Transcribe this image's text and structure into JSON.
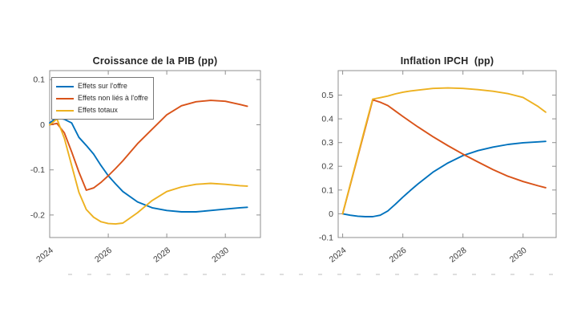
{
  "figure": {
    "background": "#ffffff",
    "axis_color": "#8f8f8f",
    "tick_label_color": "#3d3d3d",
    "title_color": "#252525"
  },
  "chart_data": [
    {
      "type": "line",
      "title": "Croissance de la PIB (pp)",
      "xlabel": "",
      "ylabel": "",
      "grid": false,
      "xlim": [
        2024,
        2031.2
      ],
      "ylim": [
        -0.25,
        0.12
      ],
      "x_tick_values": [
        2024,
        2026,
        2028,
        2030
      ],
      "x_tick_labels": [
        "2024",
        "2026",
        "2028",
        "2030"
      ],
      "y_tick_values": [
        0.1,
        0,
        -0.1,
        -0.2
      ],
      "y_tick_labels": [
        "0.1",
        "0",
        "-0.1",
        "-0.2"
      ],
      "legend": {
        "position": "top-left"
      },
      "x": [
        2024,
        2024.25,
        2024.5,
        2024.75,
        2025,
        2025.25,
        2025.5,
        2025.75,
        2026,
        2026.25,
        2026.5,
        2027,
        2027.5,
        2028,
        2028.5,
        2029,
        2029.5,
        2030,
        2030.5,
        2030.75
      ],
      "series": [
        {
          "name": "Effets sur l'offre",
          "color": "#0072BD",
          "values": [
            0.004,
            0.016,
            0.012,
            0.004,
            -0.028,
            -0.046,
            -0.065,
            -0.09,
            -0.113,
            -0.131,
            -0.148,
            -0.171,
            -0.184,
            -0.19,
            -0.193,
            -0.193,
            -0.19,
            -0.187,
            -0.184,
            -0.183
          ]
        },
        {
          "name": "Effets non liés à l'offre",
          "color": "#D95319",
          "values": [
            0.0,
            0.003,
            -0.018,
            -0.06,
            -0.105,
            -0.145,
            -0.14,
            -0.128,
            -0.113,
            -0.097,
            -0.08,
            -0.042,
            -0.01,
            0.022,
            0.042,
            0.051,
            0.054,
            0.052,
            0.045,
            0.041
          ]
        },
        {
          "name": "Effets totaux",
          "color": "#EDB120",
          "values": [
            0.0,
            0.013,
            -0.03,
            -0.09,
            -0.15,
            -0.188,
            -0.205,
            -0.215,
            -0.219,
            -0.22,
            -0.218,
            -0.195,
            -0.168,
            -0.148,
            -0.138,
            -0.132,
            -0.13,
            -0.132,
            -0.135,
            -0.136
          ]
        }
      ]
    },
    {
      "type": "line",
      "title": "Inflation IPCH  (pp)",
      "xlabel": "",
      "ylabel": "",
      "grid": false,
      "xlim": [
        2023.85,
        2031.1
      ],
      "ylim": [
        -0.1,
        0.603
      ],
      "x_tick_values": [
        2024,
        2026,
        2028,
        2030
      ],
      "x_tick_labels": [
        "2024",
        "2026",
        "2028",
        "2030"
      ],
      "y_tick_values": [
        0.5,
        0.4,
        0.3,
        0.2,
        0.1,
        0,
        -0.1
      ],
      "y_tick_labels": [
        "0.5",
        "0.4",
        "0.3",
        "0.2",
        "0.1",
        "0",
        "-0.1"
      ],
      "legend": null,
      "x": [
        2024,
        2024.25,
        2024.5,
        2024.75,
        2025,
        2025.25,
        2025.5,
        2025.75,
        2026,
        2026.25,
        2026.5,
        2027,
        2027.5,
        2028,
        2028.5,
        2029,
        2029.5,
        2030,
        2030.5,
        2030.75
      ],
      "series": [
        {
          "name": "Effets sur l'offre",
          "color": "#0072BD",
          "values": [
            0.0,
            -0.006,
            -0.01,
            -0.012,
            -0.012,
            -0.006,
            0.012,
            0.04,
            0.07,
            0.098,
            0.125,
            0.175,
            0.214,
            0.245,
            0.266,
            0.281,
            0.292,
            0.299,
            0.303,
            0.305
          ]
        },
        {
          "name": "Effets non liés à l'offre",
          "color": "#D95319",
          "values": [
            0.0,
            0.12,
            0.24,
            0.36,
            0.48,
            0.47,
            0.456,
            0.433,
            0.41,
            0.388,
            0.366,
            0.325,
            0.287,
            0.251,
            0.218,
            0.186,
            0.158,
            0.136,
            0.118,
            0.11
          ]
        },
        {
          "name": "Effets totaux",
          "color": "#EDB120",
          "values": [
            0.0,
            0.122,
            0.244,
            0.366,
            0.483,
            0.489,
            0.496,
            0.505,
            0.512,
            0.517,
            0.521,
            0.528,
            0.53,
            0.528,
            0.523,
            0.516,
            0.506,
            0.49,
            0.452,
            0.428
          ]
        }
      ]
    }
  ]
}
